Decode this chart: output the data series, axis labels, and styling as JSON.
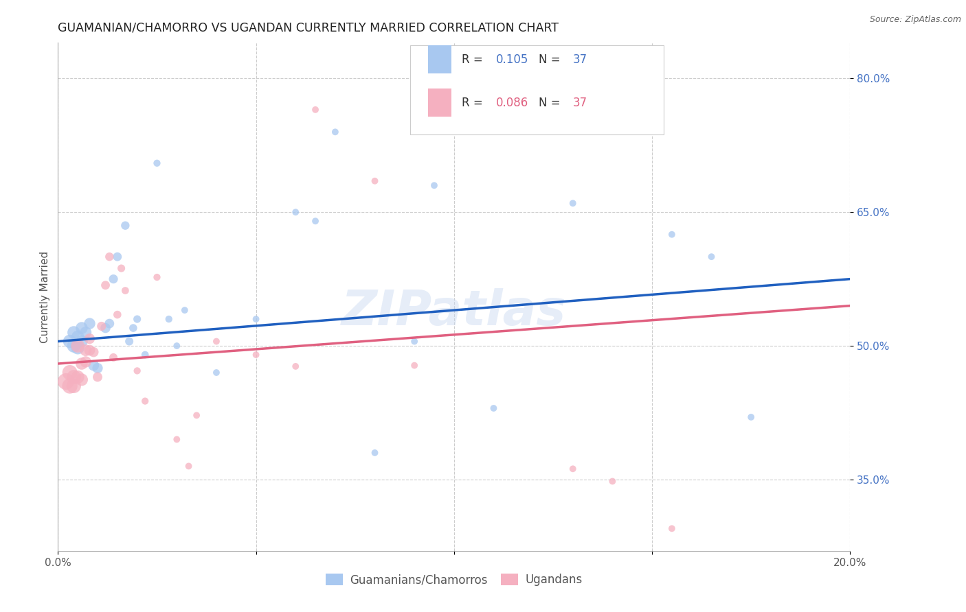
{
  "title": "GUAMANIAN/CHAMORRO VS UGANDAN CURRENTLY MARRIED CORRELATION CHART",
  "source": "Source: ZipAtlas.com",
  "ylabel": "Currently Married",
  "xmin": 0.0,
  "xmax": 0.2,
  "ymin": 0.27,
  "ymax": 0.84,
  "xtick_positions": [
    0.0,
    0.05,
    0.1,
    0.15,
    0.2
  ],
  "xtick_labels": [
    "0.0%",
    "",
    "",
    "",
    "20.0%"
  ],
  "ytick_positions": [
    0.35,
    0.5,
    0.65,
    0.8
  ],
  "ytick_labels": [
    "35.0%",
    "50.0%",
    "65.0%",
    "80.0%"
  ],
  "legend_labels": [
    "Guamanians/Chamorros",
    "Ugandans"
  ],
  "blue_color": "#a8c8f0",
  "pink_color": "#f5b0c0",
  "blue_line_color": "#2060c0",
  "pink_line_color": "#e06080",
  "r_blue": "0.105",
  "r_pink": "0.086",
  "n_blue": "37",
  "n_pink": "37",
  "blue_x": [
    0.003,
    0.004,
    0.004,
    0.005,
    0.005,
    0.006,
    0.006,
    0.007,
    0.008,
    0.009,
    0.01,
    0.012,
    0.013,
    0.014,
    0.015,
    0.017,
    0.018,
    0.019,
    0.02,
    0.022,
    0.025,
    0.028,
    0.03,
    0.032,
    0.04,
    0.05,
    0.06,
    0.065,
    0.07,
    0.08,
    0.09,
    0.095,
    0.11,
    0.13,
    0.155,
    0.165,
    0.175
  ],
  "blue_y": [
    0.505,
    0.515,
    0.5,
    0.51,
    0.498,
    0.52,
    0.505,
    0.515,
    0.525,
    0.478,
    0.475,
    0.52,
    0.525,
    0.575,
    0.6,
    0.635,
    0.505,
    0.52,
    0.53,
    0.49,
    0.705,
    0.53,
    0.5,
    0.54,
    0.47,
    0.53,
    0.65,
    0.64,
    0.74,
    0.38,
    0.505,
    0.68,
    0.43,
    0.66,
    0.625,
    0.6,
    0.42
  ],
  "blue_sizes": [
    200,
    180,
    200,
    180,
    200,
    160,
    160,
    150,
    140,
    130,
    120,
    110,
    100,
    90,
    85,
    80,
    75,
    70,
    65,
    60,
    55,
    55,
    50,
    50,
    50,
    50,
    50,
    50,
    50,
    50,
    50,
    50,
    50,
    50,
    50,
    50,
    50
  ],
  "pink_x": [
    0.002,
    0.003,
    0.003,
    0.004,
    0.004,
    0.005,
    0.005,
    0.006,
    0.006,
    0.007,
    0.007,
    0.008,
    0.008,
    0.009,
    0.01,
    0.011,
    0.012,
    0.013,
    0.014,
    0.015,
    0.016,
    0.017,
    0.02,
    0.022,
    0.025,
    0.03,
    0.033,
    0.035,
    0.04,
    0.05,
    0.06,
    0.065,
    0.08,
    0.09,
    0.13,
    0.14,
    0.155
  ],
  "pink_y": [
    0.46,
    0.455,
    0.47,
    0.455,
    0.465,
    0.5,
    0.465,
    0.462,
    0.48,
    0.495,
    0.482,
    0.495,
    0.508,
    0.493,
    0.465,
    0.522,
    0.568,
    0.6,
    0.487,
    0.535,
    0.587,
    0.562,
    0.472,
    0.438,
    0.577,
    0.395,
    0.365,
    0.422,
    0.505,
    0.49,
    0.477,
    0.765,
    0.685,
    0.478,
    0.362,
    0.348,
    0.295
  ],
  "pink_sizes": [
    300,
    260,
    250,
    230,
    220,
    200,
    190,
    170,
    160,
    150,
    140,
    130,
    120,
    110,
    100,
    90,
    85,
    80,
    75,
    70,
    65,
    60,
    55,
    55,
    55,
    50,
    50,
    50,
    50,
    50,
    50,
    50,
    50,
    50,
    50,
    50,
    50
  ],
  "watermark": "ZIPatlas",
  "background_color": "#ffffff",
  "grid_color": "#cccccc"
}
